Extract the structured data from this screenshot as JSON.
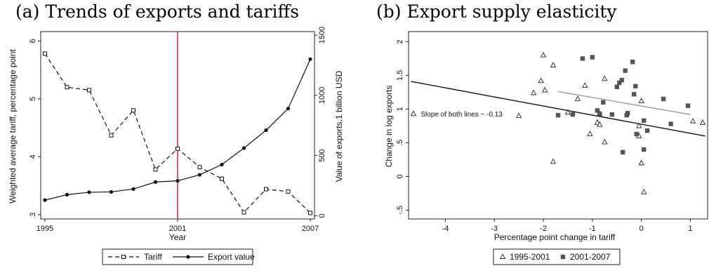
{
  "figure": {
    "panel_a_title": "(a) Trends of exports and tariffs",
    "panel_b_title": "(b) Export supply elasticity"
  },
  "chart_data": [
    {
      "type": "line",
      "xlabel": "Year",
      "ylabel_left": "Weighted average tariff, percentage point",
      "ylabel_right": "Value of exports,1 billion USD",
      "x_ticks": [
        1995,
        2001,
        2007
      ],
      "y_left_ticks": [
        3,
        4,
        5,
        6
      ],
      "y_right_ticks": [
        0,
        500,
        1000,
        1500
      ],
      "ylim_left": [
        2.95,
        6.1
      ],
      "ylim_right": [
        -15,
        1500
      ],
      "xlim": [
        1995,
        2007
      ],
      "vertical_line": {
        "x": 2001,
        "color": "#c8336b"
      },
      "legend": {
        "position": "bottom",
        "entries": [
          "Tariff",
          "Export value"
        ]
      },
      "series": [
        {
          "name": "Tariff",
          "axis": "left",
          "style": "dashed",
          "marker": "hollow-square",
          "x": [
            1995,
            1996,
            1997,
            1998,
            1999,
            2000,
            2001,
            2002,
            2003,
            2004,
            2005,
            2006,
            2007
          ],
          "values": [
            5.78,
            5.2,
            5.15,
            4.37,
            4.8,
            3.78,
            4.14,
            3.82,
            3.62,
            3.04,
            3.44,
            3.4,
            3.03
          ]
        },
        {
          "name": "Export value",
          "axis": "right",
          "style": "solid",
          "marker": "filled-circle",
          "x": [
            1995,
            1996,
            1997,
            1998,
            1999,
            2000,
            2001,
            2002,
            2003,
            2004,
            2005,
            2006,
            2007
          ],
          "values": [
            130,
            175,
            195,
            198,
            222,
            280,
            290,
            340,
            425,
            562,
            710,
            890,
            1300
          ]
        }
      ]
    },
    {
      "type": "scatter",
      "xlabel": "Percentage point change in tariff",
      "ylabel": "Change in log exports",
      "x_ticks": [
        -4,
        -3,
        -2,
        -1,
        0,
        1
      ],
      "y_ticks": [
        -0.5,
        0,
        0.5,
        1,
        1.5,
        2
      ],
      "y_tick_labels": [
        "-.5",
        "0",
        ".5",
        "1",
        "1.5",
        "2"
      ],
      "xlim": [
        -4.75,
        1.35
      ],
      "ylim": [
        -0.63,
        2.15
      ],
      "annotation": {
        "text": "Slope of both lines ~ -0.13",
        "x": -4.5,
        "y": 0.93,
        "color": "#2a2ad8"
      },
      "legend": {
        "position": "bottom",
        "entries": [
          "1995-2001",
          "2001-2007"
        ]
      },
      "fit_lines": [
        {
          "x": [
            -4.7,
            1.3
          ],
          "y": [
            1.41,
            0.6
          ],
          "color": "#111111"
        },
        {
          "x": [
            -1.7,
            1.0
          ],
          "y": [
            1.26,
            0.92
          ],
          "color": "#999999"
        }
      ],
      "series": [
        {
          "name": "1995-2001",
          "marker": "hollow-triangle",
          "points": [
            [
              -4.65,
              0.93
            ],
            [
              -2.5,
              0.9
            ],
            [
              -2.2,
              1.24
            ],
            [
              -2.05,
              1.42
            ],
            [
              -2.0,
              1.8
            ],
            [
              -1.97,
              1.28
            ],
            [
              -1.8,
              1.65
            ],
            [
              -1.8,
              0.22
            ],
            [
              -1.5,
              0.95
            ],
            [
              -1.3,
              1.15
            ],
            [
              -1.15,
              1.35
            ],
            [
              -1.05,
              0.63
            ],
            [
              -0.9,
              0.8
            ],
            [
              -0.85,
              0.77
            ],
            [
              -0.85,
              0.93
            ],
            [
              -0.75,
              1.45
            ],
            [
              -0.75,
              0.51
            ],
            [
              -0.05,
              0.6
            ],
            [
              -0.05,
              0.75
            ],
            [
              0.0,
              1.12
            ],
            [
              0.0,
              0.2
            ],
            [
              0.05,
              -0.23
            ],
            [
              1.05,
              0.82
            ],
            [
              1.25,
              0.8
            ]
          ]
        },
        {
          "name": "2001-2007",
          "marker": "filled-square",
          "points": [
            [
              -1.7,
              0.91
            ],
            [
              -1.4,
              0.92
            ],
            [
              -1.2,
              1.75
            ],
            [
              -1.0,
              1.77
            ],
            [
              -0.9,
              0.98
            ],
            [
              -0.85,
              0.93
            ],
            [
              -0.78,
              1.1
            ],
            [
              -0.6,
              0.92
            ],
            [
              -0.5,
              1.33
            ],
            [
              -0.45,
              1.39
            ],
            [
              -0.4,
              1.43
            ],
            [
              -0.38,
              0.36
            ],
            [
              -0.33,
              1.57
            ],
            [
              -0.3,
              0.91
            ],
            [
              -0.28,
              0.94
            ],
            [
              -0.18,
              1.7
            ],
            [
              -0.15,
              1.22
            ],
            [
              -0.12,
              1.34
            ],
            [
              -0.1,
              0.63
            ],
            [
              0.05,
              0.83
            ],
            [
              0.05,
              0.4
            ],
            [
              0.12,
              0.68
            ],
            [
              0.45,
              1.15
            ],
            [
              0.6,
              0.78
            ],
            [
              0.95,
              1.05
            ]
          ]
        }
      ]
    }
  ]
}
